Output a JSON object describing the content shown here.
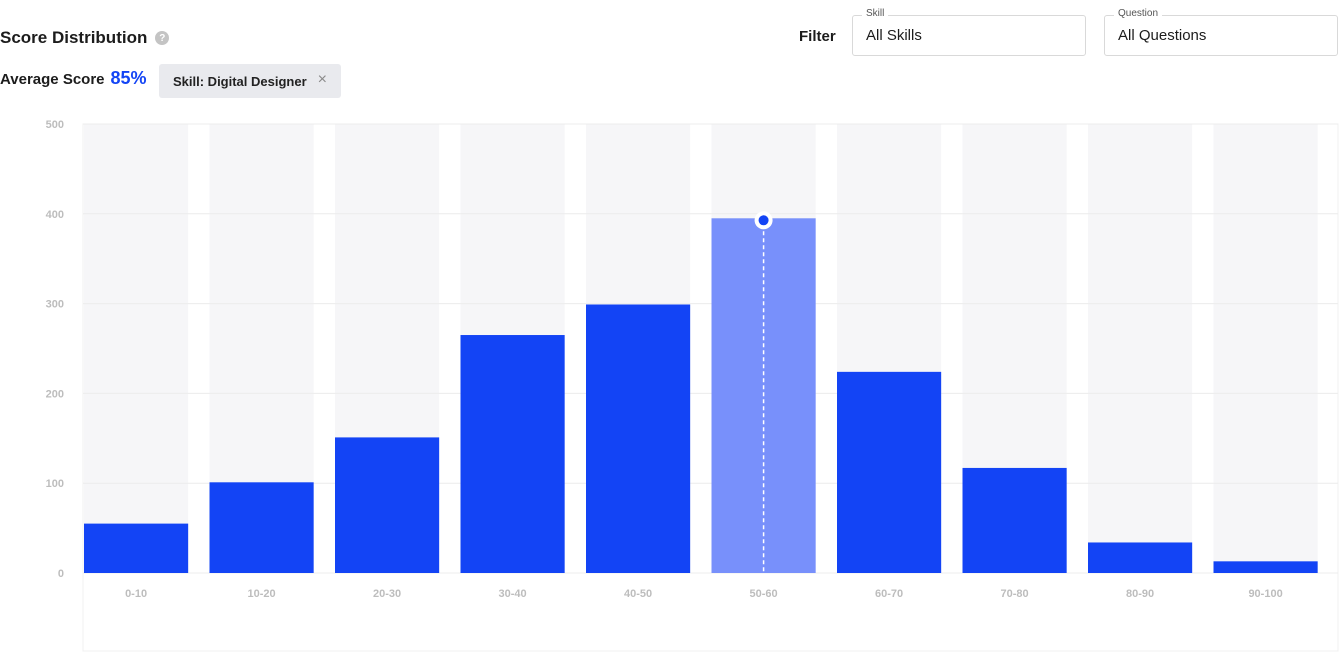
{
  "header": {
    "title": "Score Distribution",
    "help_glyph": "?",
    "average_label": "Average Score",
    "average_value": "85%",
    "chip_label": "Skill: Digital Designer",
    "chip_close_glyph": "×"
  },
  "filter": {
    "label": "Filter",
    "skill": {
      "legend": "Skill",
      "value": "All Skills"
    },
    "question": {
      "legend": "Question",
      "value": "All Questions"
    }
  },
  "colors": {
    "bar": "#1344f5",
    "highlight_bar": "#7890fb",
    "column_bg": "#f6f6f8",
    "grid": "#ececec",
    "tick": "#bdbdbd"
  },
  "chart_data": {
    "type": "bar",
    "categories": [
      "0-10",
      "10-20",
      "20-30",
      "30-40",
      "40-50",
      "50-60",
      "60-70",
      "70-80",
      "80-90",
      "90-100"
    ],
    "values": [
      55,
      101,
      151,
      265,
      299,
      395,
      224,
      117,
      34,
      13
    ],
    "highlighted_index": 5,
    "yticks": [
      0,
      100,
      200,
      300,
      400,
      500
    ],
    "ylim": [
      0,
      500
    ],
    "grid": true,
    "xlabel": "",
    "ylabel": ""
  }
}
